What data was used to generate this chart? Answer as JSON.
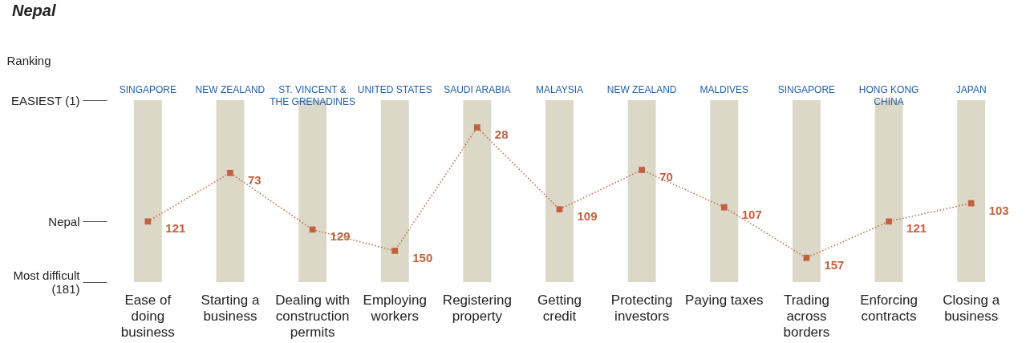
{
  "chart_data": {
    "type": "line",
    "title": "Nepal",
    "ylabel": "Ranking",
    "categories": [
      "Ease of doing business",
      "Starting a business",
      "Dealing with construction permits",
      "Employing workers",
      "Registering property",
      "Getting credit",
      "Protecting investors",
      "Paying taxes",
      "Trading across borders",
      "Enforcing contracts",
      "Closing a business"
    ],
    "series": [
      {
        "type": "bar",
        "color": "#dcd8c8",
        "base": [
          1,
          1,
          1,
          1,
          1,
          1,
          1,
          1,
          1,
          1,
          1
        ],
        "values": [
          180,
          180,
          180,
          180,
          180,
          180,
          180,
          180,
          180,
          180,
          180
        ]
      },
      {
        "color": "#c0623f",
        "values": [
          121,
          73,
          129,
          150,
          28,
          109,
          70,
          107,
          157,
          121,
          103
        ],
        "value_labels": [
          "121",
          "73",
          "129",
          "150",
          "28",
          "109",
          "70",
          "107",
          "157",
          "121",
          "103"
        ]
      }
    ],
    "ylim": [
      181,
      1
    ],
    "yticks": [
      {
        "value": 1,
        "label": "EASIEST (1)"
      },
      {
        "value": 121,
        "label": "Nepal"
      },
      {
        "value": 181,
        "label": "Most difficult (181)"
      }
    ],
    "annotations": [
      "SINGAPORE",
      "NEW ZEALAND",
      "ST. VINCENT & THE GRENADINES",
      "UNITED STATES",
      "SAUDI ARABIA",
      "MALAYSIA",
      "NEW ZEALAND",
      "MALDIVES",
      "SINGAPORE",
      "HONG KONG CHINA",
      "JAPAN"
    ],
    "marker": "square",
    "line_style": "dotted",
    "grid": false
  }
}
